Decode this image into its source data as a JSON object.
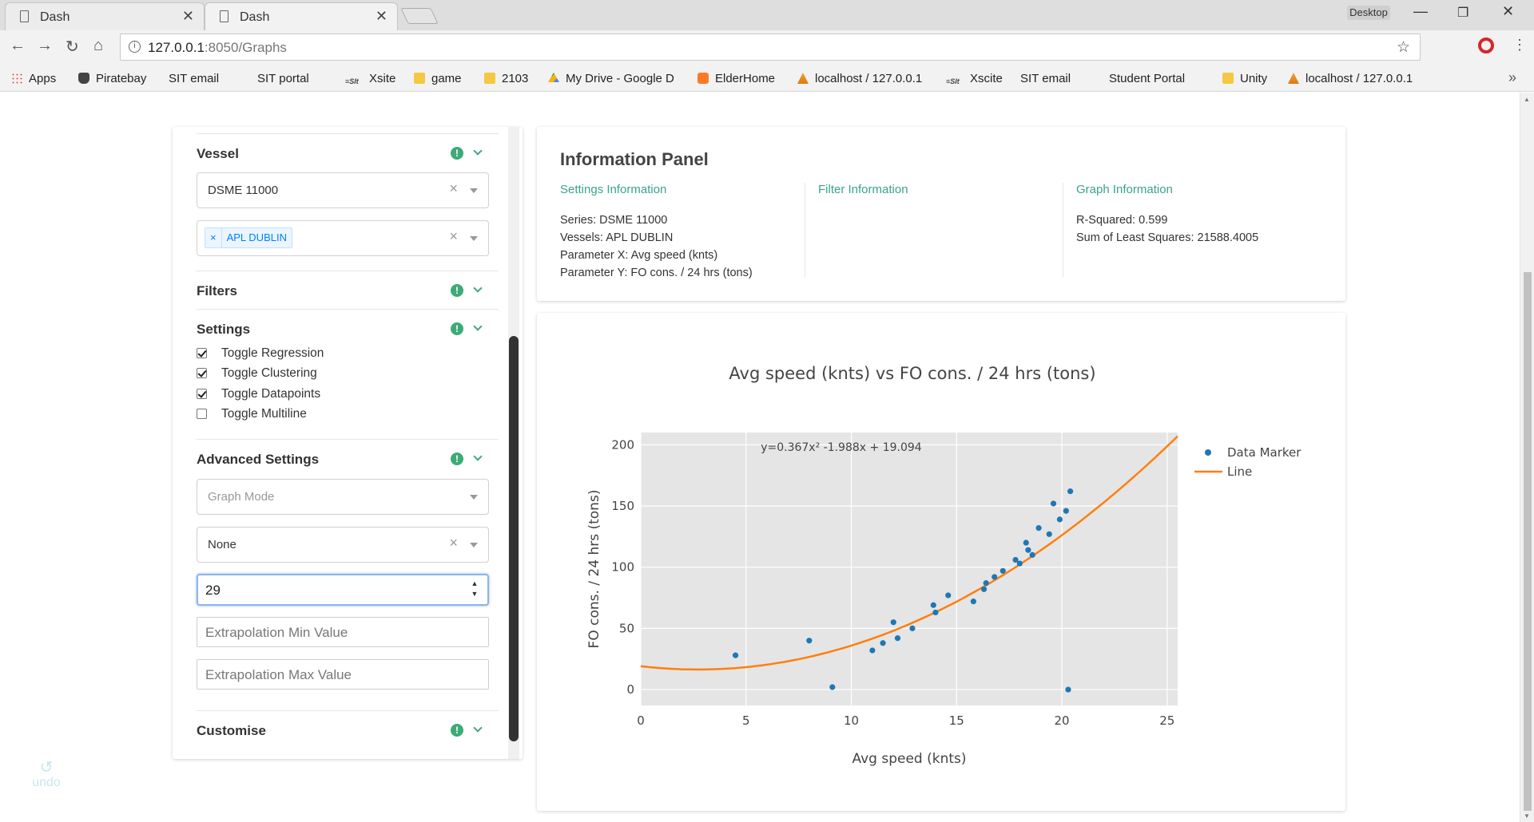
{
  "browser": {
    "tabs": [
      {
        "label": "Dash",
        "active": false
      },
      {
        "label": "Dash",
        "active": true
      }
    ],
    "window_label": "Desktop",
    "url_host": "127.0.0.1",
    "url_rest": ":8050/Graphs",
    "bookmarks": [
      {
        "label": "Apps",
        "icon": "apps-grid-icon"
      },
      {
        "label": "Piratebay",
        "icon": "pirate-icon"
      },
      {
        "label": "SIT email",
        "icon": "page-icon"
      },
      {
        "label": "SIT portal",
        "icon": "page-icon"
      },
      {
        "label": "Xsite",
        "icon": "sit-logo-icon"
      },
      {
        "label": "game",
        "icon": "folder-icon"
      },
      {
        "label": "2103",
        "icon": "folder-icon"
      },
      {
        "label": "My Drive - Google D",
        "icon": "google-drive-icon"
      },
      {
        "label": "ElderHome",
        "icon": "xampp-icon"
      },
      {
        "label": "localhost / 127.0.0.1",
        "icon": "phpmyadmin-icon"
      },
      {
        "label": "Xscite",
        "icon": "sit-logo-icon"
      },
      {
        "label": "SIT email",
        "icon": "page-icon"
      },
      {
        "label": "Student Portal",
        "icon": "page-icon"
      },
      {
        "label": "Unity",
        "icon": "folder-icon"
      },
      {
        "label": "localhost / 127.0.0.1",
        "icon": "phpmyadmin-icon"
      }
    ],
    "overflow": "»"
  },
  "controls": {
    "vessel": {
      "title": "Vessel",
      "series_value": "DSME 11000",
      "vessels_tags": [
        "APL DUBLIN"
      ],
      "tag_remove": "×"
    },
    "filters": {
      "title": "Filters"
    },
    "settings": {
      "title": "Settings",
      "checkboxes": [
        {
          "label": "Toggle Regression",
          "checked": true
        },
        {
          "label": "Toggle Clustering",
          "checked": true
        },
        {
          "label": "Toggle Datapoints",
          "checked": true
        },
        {
          "label": "Toggle Multiline",
          "checked": false
        }
      ]
    },
    "advanced": {
      "title": "Advanced Settings",
      "graph_mode_placeholder": "Graph Mode",
      "mode_value": "None",
      "degree_value": "29",
      "extrap_min_placeholder": "Extrapolation Min Value",
      "extrap_max_placeholder": "Extrapolation Max Value"
    },
    "customise": {
      "title": "Customise"
    },
    "undo_label": "undo",
    "badge": "!",
    "clear": "×"
  },
  "info_panel": {
    "title": "Information Panel",
    "settings": {
      "heading": "Settings Information",
      "lines": [
        "Series: DSME 11000",
        "Vessels: APL DUBLIN",
        "Parameter X: Avg speed (knts)",
        "Parameter Y: FO cons. / 24 hrs (tons)"
      ]
    },
    "filter": {
      "heading": "Filter Information",
      "lines": []
    },
    "graph": {
      "heading": "Graph Information",
      "lines": [
        "R-Squared: 0.599",
        "Sum of Least Squares: 21588.4005"
      ]
    }
  },
  "chart_data": {
    "type": "scatter",
    "title": "Avg speed (knts) vs FO cons. / 24 hrs (tons)",
    "xlabel": "Avg speed (knts)",
    "ylabel": "FO cons. / 24 hrs (tons)",
    "xlim": [
      0,
      25.5
    ],
    "ylim": [
      -13,
      210
    ],
    "xticks": [
      0,
      5,
      10,
      15,
      20,
      25
    ],
    "yticks": [
      0,
      50,
      100,
      150,
      200
    ],
    "grid": true,
    "annotation": "y=0.367x² -1.988x + 19.094",
    "legend_position": "top-right",
    "series": [
      {
        "name": "Data Marker",
        "kind": "markers",
        "color": "#1f77b4",
        "points": [
          [
            4.5,
            28
          ],
          [
            8.0,
            40
          ],
          [
            9.1,
            2
          ],
          [
            11.0,
            32
          ],
          [
            11.5,
            38
          ],
          [
            12.0,
            55
          ],
          [
            12.2,
            42
          ],
          [
            12.9,
            50
          ],
          [
            13.9,
            69
          ],
          [
            14.0,
            63
          ],
          [
            14.6,
            77
          ],
          [
            15.8,
            72
          ],
          [
            16.3,
            82
          ],
          [
            16.4,
            87
          ],
          [
            16.8,
            92
          ],
          [
            17.2,
            97
          ],
          [
            17.8,
            106
          ],
          [
            18.0,
            103
          ],
          [
            18.3,
            120
          ],
          [
            18.4,
            114
          ],
          [
            18.6,
            110
          ],
          [
            18.9,
            132
          ],
          [
            19.4,
            127
          ],
          [
            19.6,
            152
          ],
          [
            19.9,
            139
          ],
          [
            20.2,
            146
          ],
          [
            20.3,
            0
          ],
          [
            20.4,
            162
          ]
        ]
      },
      {
        "name": "Line",
        "kind": "polynomial",
        "color": "#ff7f0e",
        "coefficients": [
          0.367,
          -1.988,
          19.094
        ],
        "x_range": [
          0,
          25.5
        ]
      }
    ]
  }
}
